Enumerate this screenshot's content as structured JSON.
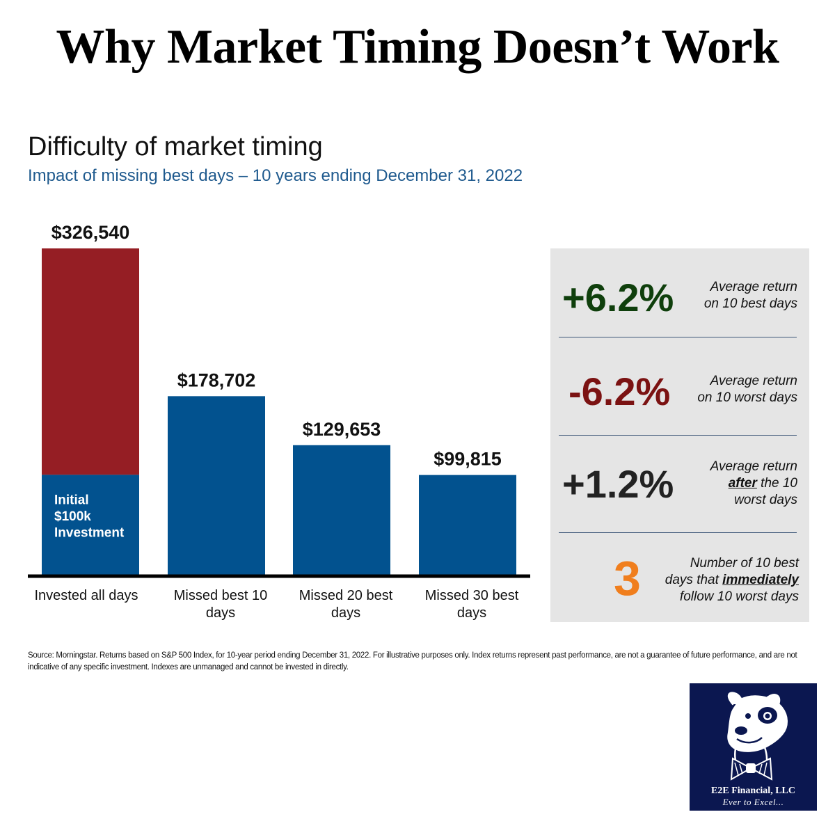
{
  "page": {
    "title": "Why Market Timing Doesn’t Work",
    "source_note": "Source: Morningstar. Returns based on S&P 500 Index, for 10-year period ending December 31, 2022. For illustrative purposes only. Index returns represent past performance, are not a guarantee of future performance, and are not indicative of any specific investment. Indexes are unmanaged and cannot be invested in directly."
  },
  "chart_data": {
    "type": "bar",
    "title": "Difficulty of market timing",
    "subtitle": "Impact of missing best days – 10 years ending December 31, 2022",
    "categories": [
      "Invested all days",
      "Missed best 10 days",
      "Missed 20 best days",
      "Missed 30 best days"
    ],
    "category_lines": [
      [
        "Invested all days"
      ],
      [
        "Missed best 10",
        "days"
      ],
      [
        "Missed 20 best",
        "days"
      ],
      [
        "Missed 30 best",
        "days"
      ]
    ],
    "values": [
      326540,
      178702,
      129653,
      99815
    ],
    "value_labels": [
      "$326,540",
      "$178,702",
      "$129,653",
      "$99,815"
    ],
    "initial_investment": 100000,
    "initial_label_lines": [
      "Initial",
      "$100k",
      "Investment"
    ],
    "ylim": [
      0,
      326540
    ],
    "colors": {
      "bar": "#02528f",
      "growth": "#951e24",
      "axis": "#000000"
    }
  },
  "stats": [
    {
      "value": "+6.2%",
      "color": "#0f3f0c",
      "desc_lines": [
        [
          "Average return"
        ],
        [
          "on 10 best days"
        ]
      ]
    },
    {
      "value": "-6.2%",
      "color": "#7b1212",
      "desc_lines": [
        [
          "Average return"
        ],
        [
          "on 10 worst days"
        ]
      ]
    },
    {
      "value": "+1.2%",
      "color": "#222222",
      "desc_lines": [
        [
          "Average return"
        ],
        [
          {
            "t": "after",
            "em": true
          },
          " the 10"
        ],
        [
          "worst days"
        ]
      ]
    },
    {
      "value": "3",
      "color": "#f07e1d",
      "desc_lines": [
        [
          "Number of 10 best"
        ],
        [
          "days that ",
          {
            "t": "immediately",
            "em": true
          }
        ],
        [
          "follow 10 worst days"
        ]
      ]
    }
  ],
  "logo": {
    "name": "E2E Financial, LLC",
    "tagline": "Ever to Excel..."
  }
}
